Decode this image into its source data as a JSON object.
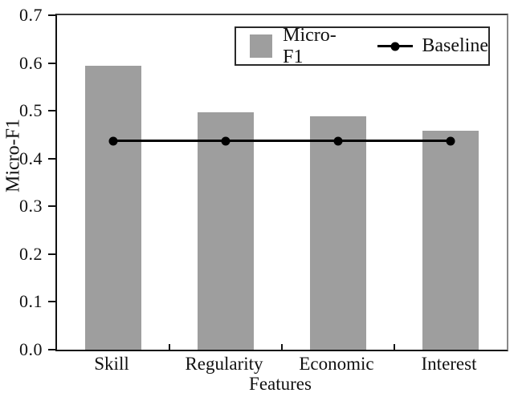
{
  "figure": {
    "background_color": "#ffffff",
    "text_color": "#111111"
  },
  "chart_data": {
    "type": "bar",
    "title": "",
    "categories": [
      "Skill",
      "Regularity",
      "Economic",
      "Interest"
    ],
    "series": [
      {
        "name": "Micro-F1",
        "type": "bar",
        "color": "#9e9e9e",
        "values": [
          0.595,
          0.497,
          0.488,
          0.458
        ]
      },
      {
        "name": "Baseline",
        "type": "line",
        "color": "#000000",
        "marker": "circle",
        "values": [
          0.437,
          0.437,
          0.437,
          0.437
        ]
      }
    ],
    "xlabel": "Features",
    "ylabel": "Micro-F1",
    "ylim": [
      0.0,
      0.7
    ],
    "ytick_labels": [
      "0.0",
      "0.1",
      "0.2",
      "0.3",
      "0.4",
      "0.5",
      "0.6",
      "0.7"
    ],
    "grid": false,
    "legend_position": "upper-right",
    "legend_entries": [
      "Micro-F1",
      "Baseline"
    ]
  }
}
